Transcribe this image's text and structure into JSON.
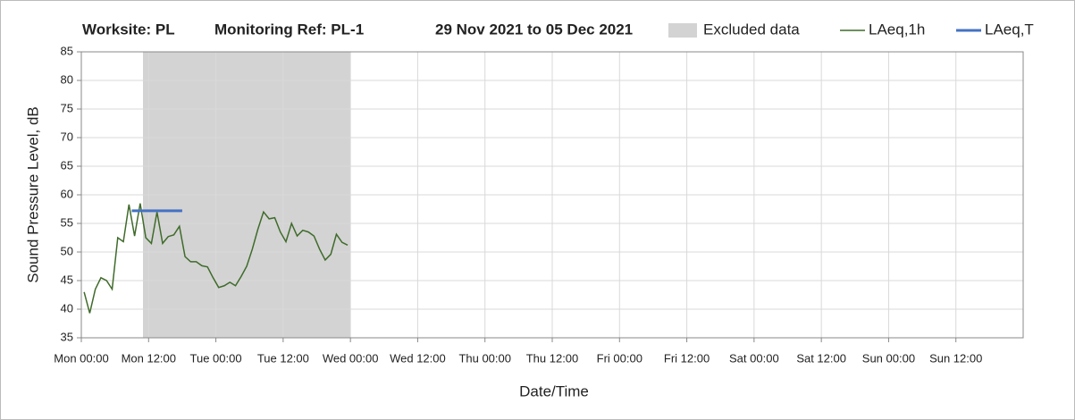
{
  "chart_data": {
    "type": "line",
    "title_parts": [
      "Worksite: PL",
      "Monitoring Ref: PL-1",
      "29 Nov 2021 to 05 Dec 2021"
    ],
    "xlabel": "Date/Time",
    "ylabel": "Sound Pressure Level, dB",
    "xlim": [
      0,
      168
    ],
    "ylim": [
      35,
      85
    ],
    "yticks": [
      35,
      40,
      45,
      50,
      55,
      60,
      65,
      70,
      75,
      80,
      85
    ],
    "xticks": [
      {
        "value": 0,
        "label": "Mon 00:00"
      },
      {
        "value": 12,
        "label": "Mon 12:00"
      },
      {
        "value": 24,
        "label": "Tue 00:00"
      },
      {
        "value": 36,
        "label": "Tue 12:00"
      },
      {
        "value": 48,
        "label": "Wed 00:00"
      },
      {
        "value": 60,
        "label": "Wed 12:00"
      },
      {
        "value": 72,
        "label": "Thu 00:00"
      },
      {
        "value": 84,
        "label": "Thu 12:00"
      },
      {
        "value": 96,
        "label": "Fri 00:00"
      },
      {
        "value": 108,
        "label": "Fri 12:00"
      },
      {
        "value": 120,
        "label": "Sat 00:00"
      },
      {
        "value": 132,
        "label": "Sat 12:00"
      },
      {
        "value": 144,
        "label": "Sun 00:00"
      },
      {
        "value": 156,
        "label": "Sun 12:00"
      }
    ],
    "grid": true,
    "excluded": {
      "name": "Excluded data",
      "color": "#d3d3d3",
      "start": 11,
      "end": 48
    },
    "series": [
      {
        "name": "LAeq,1h",
        "color": "#3f6b2a",
        "x": [
          0.5,
          1.5,
          2.5,
          3.5,
          4.5,
          5.5,
          6.5,
          7.5,
          8.5,
          9.5,
          10.5,
          11.5,
          12.5,
          13.5,
          14.5,
          15.5,
          16.5,
          17.5,
          18.5,
          19.5,
          20.5,
          21.5,
          22.5,
          23.5,
          24.5,
          25.5,
          26.5,
          27.5,
          28.5,
          29.5,
          30.5,
          31.5,
          32.5,
          33.5,
          34.5,
          35.5,
          36.5,
          37.5,
          38.5,
          39.5,
          40.5,
          41.5,
          42.5,
          43.5,
          44.5,
          45.5,
          46.5,
          47.5
        ],
        "values": [
          43,
          39.3,
          43.5,
          45.5,
          45,
          43.5,
          52.5,
          51.8,
          58.3,
          52.8,
          58.5,
          52.5,
          51.5,
          57,
          51.5,
          52.7,
          53,
          54.5,
          49.2,
          48.3,
          48.3,
          47.6,
          47.4,
          45.5,
          43.8,
          44.1,
          44.7,
          44.1,
          45.7,
          47.5,
          50.5,
          54,
          57,
          55.8,
          56,
          53.5,
          51.8,
          55,
          52.8,
          53.8,
          53.5,
          52.8,
          50.5,
          48.6,
          49.6,
          53.1,
          51.7,
          51.2
        ]
      },
      {
        "name": "LAeq,T",
        "color": "#4472c4",
        "x": [
          9,
          18
        ],
        "values": [
          57.2,
          57.2
        ]
      }
    ]
  }
}
